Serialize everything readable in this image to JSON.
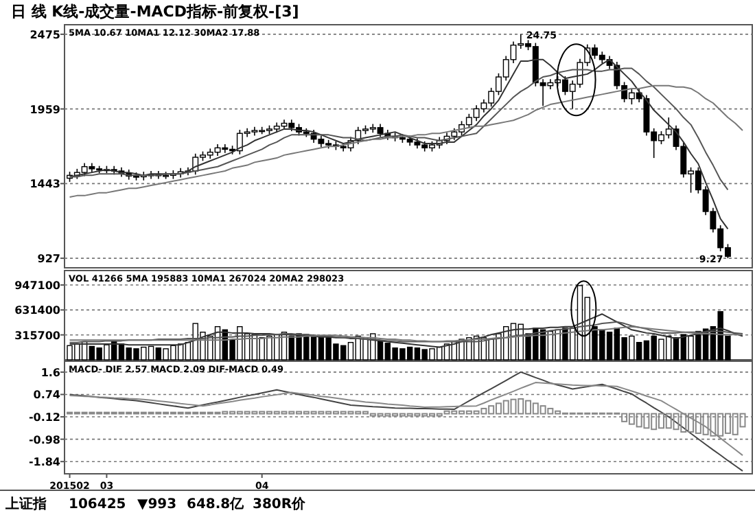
{
  "chart_data": [
    {
      "type": "candlestick",
      "title": "日 线 K线-成交量-MACD指标-前复权-[3]",
      "subtitle": "5MA 10.67 10MA1 12.12 30MA2 17.88",
      "ylim": [
        861,
        2541
      ],
      "yticks": [
        927,
        1443,
        1959,
        2475
      ],
      "grid": "y",
      "tick_labels": "y",
      "categories": [
        "201502",
        null,
        null,
        null,
        null,
        "03",
        null,
        null,
        null,
        null,
        null,
        null,
        null,
        null,
        null,
        null,
        null,
        null,
        null,
        null,
        null,
        null,
        null,
        null,
        null,
        null,
        "04",
        null,
        null,
        null,
        null,
        null,
        null,
        null,
        null,
        null,
        null,
        null,
        null,
        null,
        null,
        null,
        null,
        null,
        null,
        null,
        null,
        null,
        null,
        null,
        null,
        null,
        null,
        null,
        null,
        null,
        null,
        null,
        null,
        null,
        null,
        null,
        null,
        null,
        null,
        null,
        null,
        null,
        null,
        null,
        null,
        null,
        null,
        null,
        null,
        null,
        null,
        null,
        null,
        null,
        null,
        null,
        null,
        null,
        null,
        null,
        null,
        null,
        null,
        null,
        null,
        null
      ],
      "ohlc": [
        [
          1480,
          1525,
          1455,
          1500
        ],
        [
          1500,
          1545,
          1475,
          1520
        ],
        [
          1520,
          1585,
          1495,
          1560
        ],
        [
          1560,
          1585,
          1520,
          1545
        ],
        [
          1545,
          1565,
          1515,
          1540
        ],
        [
          1540,
          1565,
          1515,
          1540
        ],
        [
          1540,
          1565,
          1505,
          1530
        ],
        [
          1530,
          1555,
          1490,
          1515
        ],
        [
          1515,
          1540,
          1470,
          1495
        ],
        [
          1495,
          1520,
          1465,
          1490
        ],
        [
          1490,
          1525,
          1465,
          1500
        ],
        [
          1500,
          1530,
          1475,
          1505
        ],
        [
          1505,
          1530,
          1475,
          1500
        ],
        [
          1500,
          1525,
          1475,
          1500
        ],
        [
          1500,
          1535,
          1475,
          1510
        ],
        [
          1510,
          1550,
          1485,
          1525
        ],
        [
          1525,
          1555,
          1500,
          1530
        ],
        [
          1530,
          1650,
          1505,
          1625
        ],
        [
          1625,
          1665,
          1600,
          1640
        ],
        [
          1640,
          1685,
          1615,
          1660
        ],
        [
          1660,
          1715,
          1635,
          1690
        ],
        [
          1690,
          1715,
          1655,
          1680
        ],
        [
          1680,
          1705,
          1645,
          1670
        ],
        [
          1670,
          1815,
          1645,
          1790
        ],
        [
          1790,
          1825,
          1765,
          1800
        ],
        [
          1800,
          1835,
          1775,
          1810
        ],
        [
          1810,
          1835,
          1785,
          1810
        ],
        [
          1810,
          1845,
          1785,
          1820
        ],
        [
          1820,
          1865,
          1795,
          1840
        ],
        [
          1840,
          1885,
          1815,
          1860
        ],
        [
          1860,
          1885,
          1805,
          1830
        ],
        [
          1830,
          1855,
          1775,
          1800
        ],
        [
          1800,
          1825,
          1765,
          1790
        ],
        [
          1790,
          1815,
          1725,
          1750
        ],
        [
          1750,
          1775,
          1695,
          1720
        ],
        [
          1720,
          1745,
          1685,
          1710
        ],
        [
          1710,
          1735,
          1675,
          1700
        ],
        [
          1700,
          1725,
          1665,
          1690
        ],
        [
          1690,
          1765,
          1665,
          1740
        ],
        [
          1740,
          1835,
          1715,
          1810
        ],
        [
          1810,
          1845,
          1785,
          1820
        ],
        [
          1820,
          1855,
          1795,
          1830
        ],
        [
          1830,
          1855,
          1765,
          1790
        ],
        [
          1790,
          1815,
          1745,
          1770
        ],
        [
          1770,
          1795,
          1735,
          1760
        ],
        [
          1760,
          1785,
          1725,
          1750
        ],
        [
          1750,
          1775,
          1705,
          1730
        ],
        [
          1730,
          1755,
          1685,
          1710
        ],
        [
          1710,
          1735,
          1665,
          1690
        ],
        [
          1690,
          1735,
          1665,
          1710
        ],
        [
          1710,
          1765,
          1685,
          1740
        ],
        [
          1740,
          1795,
          1715,
          1770
        ],
        [
          1770,
          1825,
          1745,
          1800
        ],
        [
          1800,
          1875,
          1775,
          1850
        ],
        [
          1850,
          1925,
          1825,
          1900
        ],
        [
          1900,
          1985,
          1875,
          1960
        ],
        [
          1960,
          2025,
          1935,
          2000
        ],
        [
          2000,
          2105,
          1975,
          2080
        ],
        [
          2080,
          2205,
          2055,
          2180
        ],
        [
          2180,
          2325,
          2155,
          2300
        ],
        [
          2300,
          2425,
          2275,
          2400
        ],
        [
          2400,
          2475,
          2375,
          2410
        ],
        [
          2410,
          2435,
          2365,
          2390
        ],
        [
          2390,
          2415,
          2115,
          2140
        ],
        [
          2140,
          2165,
          1980,
          2120
        ],
        [
          2120,
          2165,
          2095,
          2140
        ],
        [
          2140,
          2185,
          2115,
          2160
        ],
        [
          2160,
          2185,
          2055,
          2080
        ],
        [
          2080,
          2155,
          1960,
          2130
        ],
        [
          2130,
          2305,
          2105,
          2280
        ],
        [
          2280,
          2405,
          2255,
          2380
        ],
        [
          2380,
          2405,
          2305,
          2330
        ],
        [
          2330,
          2355,
          2275,
          2300
        ],
        [
          2300,
          2325,
          2235,
          2260
        ],
        [
          2260,
          2285,
          2095,
          2120
        ],
        [
          2120,
          2145,
          2005,
          2030
        ],
        [
          2030,
          2095,
          1990,
          2070
        ],
        [
          2070,
          2095,
          2005,
          2030
        ],
        [
          2030,
          2055,
          1775,
          1800
        ],
        [
          1800,
          1825,
          1620,
          1740
        ],
        [
          1740,
          1805,
          1715,
          1780
        ],
        [
          1780,
          1900,
          1755,
          1820
        ],
        [
          1820,
          1845,
          1675,
          1700
        ],
        [
          1700,
          1725,
          1485,
          1510
        ],
        [
          1510,
          1555,
          1380,
          1530
        ],
        [
          1530,
          1555,
          1375,
          1400
        ],
        [
          1400,
          1425,
          1225,
          1250
        ],
        [
          1250,
          1275,
          1105,
          1130
        ],
        [
          1130,
          1155,
          975,
          1000
        ],
        [
          1000,
          1025,
          927,
          940
        ],
        null,
        null
      ],
      "series": [
        {
          "type": "line",
          "color": "#333333",
          "values": [
            1490,
            1500,
            1510,
            1520,
            1530,
            1540,
            1530,
            1520,
            1520,
            1510,
            1500,
            1510,
            1510,
            1510,
            1510,
            1510,
            1530,
            1560,
            1580,
            1600,
            1620,
            1640,
            1660,
            1690,
            1710,
            1740,
            1760,
            1780,
            1800,
            1820,
            1820,
            1810,
            1810,
            1800,
            1780,
            1760,
            1740,
            1720,
            1730,
            1750,
            1760,
            1770,
            1780,
            1790,
            1800,
            1780,
            1760,
            1740,
            1720,
            1720,
            1720,
            1730,
            1730,
            1770,
            1810,
            1850,
            1910,
            1960,
            2020,
            2110,
            2200,
            2290,
            2290,
            2300,
            2300,
            2260,
            2210,
            2170,
            2180,
            2190,
            2200,
            2230,
            2270,
            2300,
            2250,
            2200,
            2150,
            2080,
            2020,
            1950,
            1900,
            1850,
            1800,
            1730,
            1650,
            1580,
            1450,
            1330,
            1200,
            1130,
            null,
            null
          ]
        },
        {
          "type": "line",
          "color": "#555555",
          "values": [
            1490,
            1490,
            1500,
            1500,
            1510,
            1510,
            1510,
            1510,
            1500,
            1500,
            1500,
            1500,
            1500,
            1510,
            1510,
            1510,
            1520,
            1530,
            1540,
            1550,
            1560,
            1580,
            1600,
            1620,
            1640,
            1660,
            1680,
            1710,
            1730,
            1760,
            1780,
            1780,
            1780,
            1780,
            1780,
            1780,
            1770,
            1760,
            1760,
            1750,
            1740,
            1750,
            1760,
            1770,
            1770,
            1780,
            1770,
            1760,
            1760,
            1750,
            1740,
            1750,
            1760,
            1770,
            1780,
            1790,
            1840,
            1890,
            1940,
            1990,
            2040,
            2080,
            2110,
            2150,
            2180,
            2190,
            2210,
            2220,
            2230,
            2230,
            2230,
            2220,
            2220,
            2230,
            2230,
            2240,
            2240,
            2200,
            2150,
            2110,
            2060,
            2010,
            1960,
            1900,
            1850,
            1760,
            1660,
            1570,
            1470,
            1400,
            null,
            null
          ]
        },
        {
          "type": "line",
          "color": "#777777",
          "values": [
            1350,
            1360,
            1360,
            1370,
            1380,
            1380,
            1390,
            1400,
            1410,
            1410,
            1420,
            1430,
            1440,
            1450,
            1460,
            1470,
            1480,
            1490,
            1500,
            1510,
            1520,
            1530,
            1550,
            1560,
            1570,
            1590,
            1600,
            1610,
            1620,
            1640,
            1650,
            1660,
            1670,
            1680,
            1690,
            1700,
            1700,
            1710,
            1720,
            1730,
            1740,
            1750,
            1750,
            1760,
            1760,
            1770,
            1770,
            1780,
            1780,
            1790,
            1790,
            1800,
            1810,
            1820,
            1830,
            1840,
            1840,
            1850,
            1860,
            1870,
            1880,
            1900,
            1920,
            1950,
            1970,
            1990,
            2000,
            2010,
            2020,
            2030,
            2040,
            2050,
            2060,
            2070,
            2080,
            2090,
            2100,
            2100,
            2110,
            2120,
            2120,
            2120,
            2110,
            2110,
            2100,
            2070,
            2030,
            2000,
            1950,
            1900,
            1860,
            1810
          ]
        }
      ],
      "annotations": [
        "24.75",
        "9.27"
      ]
    },
    {
      "type": "bar",
      "subtitle": "VOL 41266 5MA 195883 10MA1 267024 20MA2 298023",
      "ylim": [
        0,
        1130000
      ],
      "yticks": [
        315700,
        631400,
        947100
      ],
      "grid": "y",
      "tick_labels": "y",
      "categories": [
        "201502",
        null,
        null,
        null,
        null,
        "03",
        null,
        null,
        null,
        null,
        null,
        null,
        null,
        null,
        null,
        null,
        null,
        null,
        null,
        null,
        null,
        null,
        null,
        null,
        null,
        null,
        "04",
        null,
        null,
        null,
        null,
        null,
        null,
        null,
        null,
        null,
        null,
        null,
        null,
        null,
        null,
        null,
        null,
        null,
        null,
        null,
        null,
        null,
        null,
        null,
        null,
        null,
        null,
        null,
        null,
        null,
        null,
        null,
        null,
        null,
        null,
        null,
        null,
        null,
        null,
        null,
        null,
        null,
        null,
        null,
        null,
        null,
        null,
        null,
        null,
        null,
        null,
        null,
        null,
        null,
        null,
        null,
        null,
        null,
        null,
        null,
        null,
        null,
        null,
        null,
        null,
        null
      ],
      "values": [
        180000,
        200000,
        230000,
        170000,
        150000,
        190000,
        240000,
        200000,
        150000,
        140000,
        160000,
        170000,
        150000,
        140000,
        180000,
        200000,
        220000,
        460000,
        350000,
        300000,
        420000,
        380000,
        250000,
        420000,
        330000,
        320000,
        280000,
        300000,
        320000,
        350000,
        300000,
        330000,
        320000,
        310000,
        300000,
        290000,
        200000,
        180000,
        220000,
        300000,
        280000,
        330000,
        230000,
        210000,
        150000,
        140000,
        160000,
        150000,
        130000,
        140000,
        160000,
        200000,
        230000,
        260000,
        280000,
        300000,
        280000,
        260000,
        330000,
        420000,
        460000,
        450000,
        330000,
        400000,
        380000,
        360000,
        380000,
        400000,
        400000,
        940000,
        790000,
        420000,
        380000,
        350000,
        400000,
        280000,
        300000,
        220000,
        240000,
        300000,
        260000,
        300000,
        280000,
        320000,
        300000,
        360000,
        390000,
        420000,
        610000,
        300000,
        null,
        null
      ],
      "colors": [
        "#ffffff",
        "#ffffff",
        "#ffffff",
        "#000000",
        "#000000",
        "#ffffff",
        "#000000",
        "#000000",
        "#000000",
        "#000000",
        "#ffffff",
        "#ffffff",
        "#000000",
        "#ffffff",
        "#ffffff",
        "#ffffff",
        "#ffffff",
        "#ffffff",
        "#ffffff",
        "#ffffff",
        "#ffffff",
        "#000000",
        "#000000",
        "#ffffff",
        "#ffffff",
        "#ffffff",
        "#ffffff",
        "#ffffff",
        "#ffffff",
        "#ffffff",
        "#000000",
        "#000000",
        "#000000",
        "#000000",
        "#000000",
        "#000000",
        "#000000",
        "#000000",
        "#ffffff",
        "#ffffff",
        "#ffffff",
        "#ffffff",
        "#000000",
        "#000000",
        "#000000",
        "#000000",
        "#000000",
        "#000000",
        "#000000",
        "#ffffff",
        "#ffffff",
        "#ffffff",
        "#ffffff",
        "#ffffff",
        "#ffffff",
        "#ffffff",
        "#ffffff",
        "#ffffff",
        "#ffffff",
        "#ffffff",
        "#ffffff",
        "#ffffff",
        "#000000",
        "#000000",
        "#000000",
        "#ffffff",
        "#ffffff",
        "#000000",
        "#ffffff",
        "#ffffff",
        "#ffffff",
        "#000000",
        "#000000",
        "#000000",
        "#000000",
        "#000000",
        "#ffffff",
        "#000000",
        "#000000",
        "#000000",
        "#ffffff",
        "#ffffff",
        "#000000",
        "#000000",
        "#ffffff",
        "#000000",
        "#000000",
        "#000000",
        "#000000",
        "#000000",
        null,
        null
      ],
      "series": [
        {
          "type": "line",
          "color": "#333333",
          "values": [
            200000,
            200000,
            200000,
            200000,
            200000,
            200000,
            200000,
            200000,
            190000,
            190000,
            190000,
            190000,
            190000,
            190000,
            190000,
            190000,
            220000,
            250000,
            290000,
            320000,
            350000,
            350000,
            340000,
            340000,
            340000,
            330000,
            330000,
            330000,
            320000,
            320000,
            320000,
            310000,
            310000,
            300000,
            290000,
            290000,
            280000,
            280000,
            270000,
            270000,
            260000,
            250000,
            240000,
            230000,
            220000,
            210000,
            200000,
            190000,
            180000,
            170000,
            160000,
            180000,
            200000,
            230000,
            250000,
            270000,
            290000,
            320000,
            340000,
            360000,
            380000,
            390000,
            390000,
            400000,
            400000,
            410000,
            410000,
            420000,
            420000,
            460000,
            500000,
            540000,
            580000,
            530000,
            480000,
            430000,
            380000,
            360000,
            340000,
            330000,
            310000,
            290000,
            270000,
            290000,
            310000,
            330000,
            360000,
            380000,
            400000,
            370000,
            330000,
            300000
          ]
        },
        {
          "type": "line",
          "color": "#555555",
          "values": [
            220000,
            220000,
            230000,
            230000,
            230000,
            240000,
            240000,
            240000,
            250000,
            250000,
            250000,
            250000,
            260000,
            260000,
            260000,
            260000,
            270000,
            270000,
            270000,
            280000,
            280000,
            290000,
            290000,
            300000,
            300000,
            310000,
            310000,
            320000,
            320000,
            330000,
            330000,
            320000,
            320000,
            310000,
            300000,
            300000,
            290000,
            280000,
            280000,
            270000,
            260000,
            260000,
            250000,
            240000,
            240000,
            230000,
            230000,
            230000,
            230000,
            230000,
            230000,
            230000,
            230000,
            230000,
            230000,
            230000,
            240000,
            260000,
            270000,
            280000,
            300000,
            310000,
            320000,
            340000,
            350000,
            370000,
            380000,
            390000,
            400000,
            420000,
            430000,
            440000,
            460000,
            470000,
            480000,
            460000,
            430000,
            410000,
            390000,
            360000,
            340000,
            340000,
            340000,
            350000,
            350000,
            350000,
            350000,
            360000,
            360000,
            350000,
            340000,
            330000
          ]
        },
        {
          "type": "line",
          "color": "#777777",
          "values": [
            250000,
            250000,
            250000,
            250000,
            250000,
            250000,
            250000,
            250000,
            250000,
            250000,
            250000,
            250000,
            250000,
            250000,
            250000,
            250000,
            250000,
            250000,
            250000,
            250000,
            250000,
            250000,
            260000,
            260000,
            270000,
            270000,
            270000,
            280000,
            280000,
            290000,
            290000,
            290000,
            300000,
            300000,
            310000,
            310000,
            310000,
            300000,
            290000,
            290000,
            280000,
            280000,
            270000,
            260000,
            260000,
            250000,
            250000,
            240000,
            240000,
            230000,
            230000,
            240000,
            240000,
            250000,
            250000,
            260000,
            260000,
            270000,
            280000,
            280000,
            290000,
            300000,
            300000,
            310000,
            310000,
            320000,
            330000,
            340000,
            350000,
            360000,
            370000,
            380000,
            380000,
            390000,
            400000,
            410000,
            420000,
            410000,
            400000,
            390000,
            380000,
            370000,
            360000,
            350000,
            340000,
            330000,
            330000,
            330000,
            320000,
            320000,
            320000,
            320000
          ]
        }
      ]
    },
    {
      "type": "line",
      "subtitle": "MACD- DIF 2.57 MACD 2.09 DIF-MACD 0.49",
      "ylim": [
        -2.31,
        2.02
      ],
      "yticks": [
        1.6,
        0.74,
        -0.12,
        -0.98,
        -1.84
      ],
      "grid": "y",
      "categories": [
        "201502",
        null,
        null,
        null,
        null,
        "03",
        null,
        null,
        null,
        null,
        null,
        null,
        null,
        null,
        null,
        null,
        null,
        null,
        null,
        null,
        null,
        null,
        null,
        null,
        null,
        null,
        "04",
        null,
        null,
        null,
        null,
        null,
        null,
        null,
        null,
        null,
        null,
        null,
        null,
        null,
        null,
        null,
        null,
        null,
        null,
        null,
        null,
        null,
        null,
        null,
        null,
        null,
        null,
        null,
        null,
        null,
        null,
        null,
        null,
        null,
        null,
        null,
        null,
        null,
        null,
        null,
        null,
        null,
        null,
        null,
        null,
        null,
        null,
        null,
        null,
        null,
        null,
        null,
        null,
        null,
        null,
        null,
        null,
        null,
        null,
        null,
        null,
        null,
        null,
        null,
        null,
        null
      ],
      "series": [
        {
          "type": "line",
          "color": "#444444",
          "values": [
            0.74,
            0.71,
            0.69,
            0.66,
            0.63,
            0.61,
            0.58,
            0.55,
            0.53,
            0.5,
            0.46,
            0.42,
            0.38,
            0.34,
            0.3,
            0.26,
            0.22,
            0.28,
            0.34,
            0.4,
            0.45,
            0.51,
            0.57,
            0.63,
            0.69,
            0.74,
            0.8,
            0.86,
            0.92,
            0.86,
            0.8,
            0.74,
            0.68,
            0.63,
            0.57,
            0.51,
            0.45,
            0.39,
            0.33,
            0.31,
            0.29,
            0.27,
            0.26,
            0.24,
            0.22,
            0.21,
            0.21,
            0.2,
            0.2,
            0.19,
            0.18,
            0.18,
            0.17,
            0.33,
            0.49,
            0.65,
            0.81,
            0.96,
            1.12,
            1.28,
            1.44,
            1.6,
            1.5,
            1.39,
            1.29,
            1.18,
            1.1,
            1.03,
            0.95,
            1.0,
            1.04,
            1.09,
            1.13,
            1.04,
            0.95,
            0.85,
            0.76,
            0.58,
            0.41,
            0.23,
            0.06,
            -0.12,
            -0.33,
            -0.54,
            -0.76,
            -0.97,
            -1.18,
            -1.39,
            -1.59,
            -1.8,
            -2.0,
            -2.2
          ]
        },
        {
          "type": "line",
          "color": "#888888",
          "values": [
            0.7,
            0.69,
            0.67,
            0.66,
            0.64,
            0.63,
            0.61,
            0.6,
            0.58,
            0.57,
            0.55,
            0.52,
            0.49,
            0.46,
            0.43,
            0.39,
            0.36,
            0.33,
            0.3,
            0.34,
            0.39,
            0.43,
            0.47,
            0.52,
            0.56,
            0.6,
            0.65,
            0.69,
            0.73,
            0.78,
            0.82,
            0.78,
            0.75,
            0.71,
            0.67,
            0.64,
            0.6,
            0.56,
            0.52,
            0.49,
            0.45,
            0.43,
            0.4,
            0.37,
            0.35,
            0.33,
            0.3,
            0.28,
            0.25,
            0.26,
            0.26,
            0.27,
            0.28,
            0.29,
            0.29,
            0.3,
            0.41,
            0.53,
            0.64,
            0.75,
            0.86,
            0.98,
            1.09,
            1.2,
            1.18,
            1.16,
            1.14,
            1.12,
            1.1,
            1.09,
            1.08,
            1.08,
            1.07,
            1.06,
            1.05,
            0.96,
            0.87,
            0.78,
            0.68,
            0.59,
            0.5,
            0.33,
            0.17,
            0.0,
            -0.17,
            -0.33,
            -0.5,
            -0.72,
            -0.94,
            -1.16,
            -1.38,
            -1.6
          ]
        },
        {
          "type": "bar",
          "color": "#888888",
          "values": [
            0.05,
            0.05,
            0.05,
            0.05,
            0.05,
            0.05,
            0.05,
            0.05,
            0.05,
            0.05,
            0.05,
            0.05,
            0.05,
            0.05,
            0.05,
            0.05,
            0.05,
            0.05,
            0.05,
            0.05,
            0.05,
            0.08,
            0.08,
            0.08,
            0.08,
            0.08,
            0.08,
            0.08,
            0.08,
            0.08,
            0.08,
            0.08,
            0.08,
            0.08,
            0.08,
            0.08,
            0.08,
            0.08,
            0.08,
            0.08,
            0.08,
            -0.08,
            -0.08,
            -0.08,
            -0.08,
            -0.08,
            -0.08,
            -0.08,
            -0.08,
            -0.08,
            -0.08,
            0.1,
            0.1,
            0.1,
            0.1,
            0.1,
            0.2,
            0.3,
            0.4,
            0.5,
            0.55,
            0.57,
            0.5,
            0.4,
            0.3,
            0.2,
            0.1,
            0.02,
            0.02,
            0.02,
            0.02,
            0.02,
            0.02,
            0.02,
            0.02,
            -0.3,
            -0.4,
            -0.5,
            -0.55,
            -0.6,
            -0.55,
            -0.55,
            -0.6,
            -0.7,
            -0.7,
            -0.75,
            -0.8,
            -0.85,
            -0.85,
            -0.75,
            -0.8,
            -0.5
          ]
        }
      ],
      "annotations": [
        "上证指",
        "106425",
        "▼993",
        "648.8亿",
        "380R价"
      ]
    }
  ]
}
